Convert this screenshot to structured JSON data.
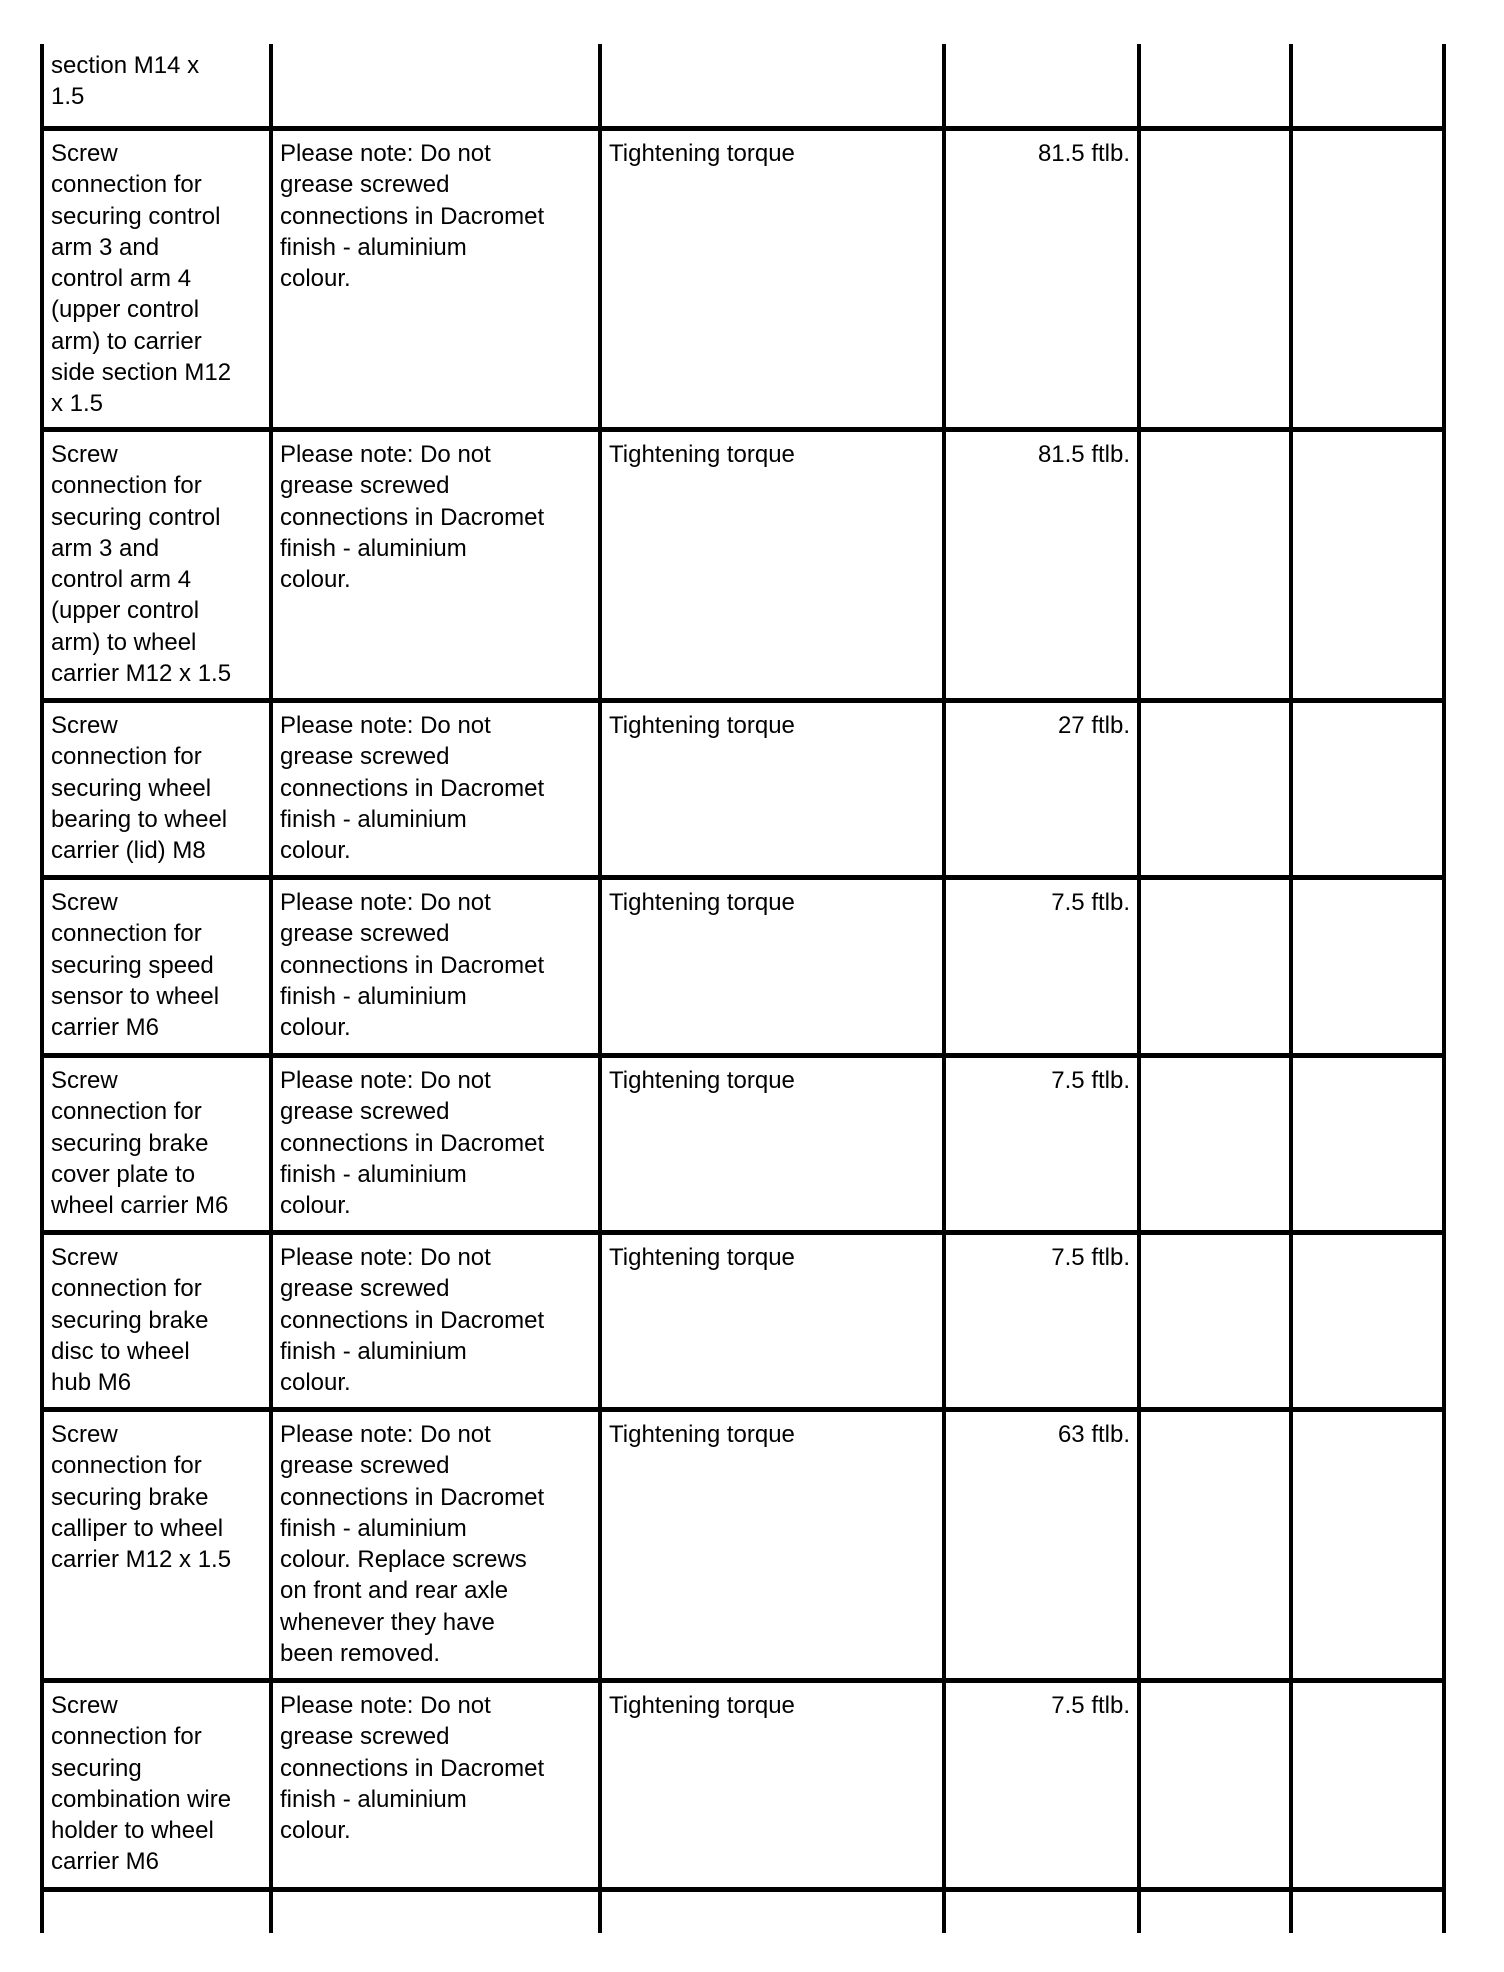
{
  "table": {
    "rows": [
      {
        "component": "section M14 x\n1.5",
        "note": "",
        "operation": "",
        "value": "",
        "col5": "",
        "col6": ""
      },
      {
        "component": "Screw\nconnection for\nsecuring control\narm 3 and\ncontrol arm 4\n(upper control\narm) to carrier\nside section M12\nx 1.5",
        "note": "Please note: Do not\ngrease screwed\nconnections in Dacromet\nfinish - aluminium\ncolour.",
        "operation": "Tightening torque",
        "value": "81.5 ftlb.",
        "col5": "",
        "col6": ""
      },
      {
        "component": "Screw\nconnection for\nsecuring control\narm 3 and\ncontrol arm 4\n(upper control\narm) to wheel\ncarrier M12 x 1.5",
        "note": "Please note: Do not\ngrease screwed\nconnections in Dacromet\nfinish - aluminium\ncolour.",
        "operation": "Tightening torque",
        "value": "81.5 ftlb.",
        "col5": "",
        "col6": ""
      },
      {
        "component": "Screw\nconnection for\nsecuring wheel\nbearing to wheel\ncarrier (lid) M8",
        "note": "Please note: Do not\ngrease screwed\nconnections in Dacromet\nfinish - aluminium\ncolour.",
        "operation": "Tightening torque",
        "value": "27 ftlb.",
        "col5": "",
        "col6": ""
      },
      {
        "component": "Screw\nconnection for\nsecuring speed\nsensor to wheel\ncarrier M6",
        "note": "Please note: Do not\ngrease screwed\nconnections in Dacromet\nfinish - aluminium\ncolour.",
        "operation": "Tightening torque",
        "value": "7.5 ftlb.",
        "col5": "",
        "col6": ""
      },
      {
        "component": "Screw\nconnection for\nsecuring brake\ncover plate to\nwheel carrier M6",
        "note": "Please note: Do not\ngrease screwed\nconnections in Dacromet\nfinish - aluminium\ncolour.",
        "operation": "Tightening torque",
        "value": "7.5 ftlb.",
        "col5": "",
        "col6": ""
      },
      {
        "component": "Screw\nconnection for\nsecuring brake\ndisc to wheel\nhub M6",
        "note": "Please note: Do not\ngrease screwed\nconnections in Dacromet\nfinish - aluminium\ncolour.",
        "operation": "Tightening torque",
        "value": "7.5 ftlb.",
        "col5": "",
        "col6": ""
      },
      {
        "component": "Screw\nconnection for\nsecuring brake\ncalliper to wheel\ncarrier M12 x 1.5",
        "note": "Please note: Do not\ngrease screwed\nconnections in Dacromet\nfinish - aluminium\ncolour. Replace screws\non front and rear axle\nwhenever they have\nbeen removed.",
        "operation": "Tightening torque",
        "value": "63 ftlb.",
        "col5": "",
        "col6": ""
      },
      {
        "component": "Screw\nconnection for\nsecuring\ncombination wire\nholder to wheel\ncarrier M6",
        "note": "Please note: Do not\ngrease screwed\nconnections in Dacromet\nfinish - aluminium\ncolour.",
        "operation": "Tightening torque",
        "value": "7.5 ftlb.",
        "col5": "",
        "col6": ""
      },
      {
        "component": "",
        "note": "",
        "operation": "",
        "value": "",
        "col5": "",
        "col6": ""
      }
    ]
  }
}
